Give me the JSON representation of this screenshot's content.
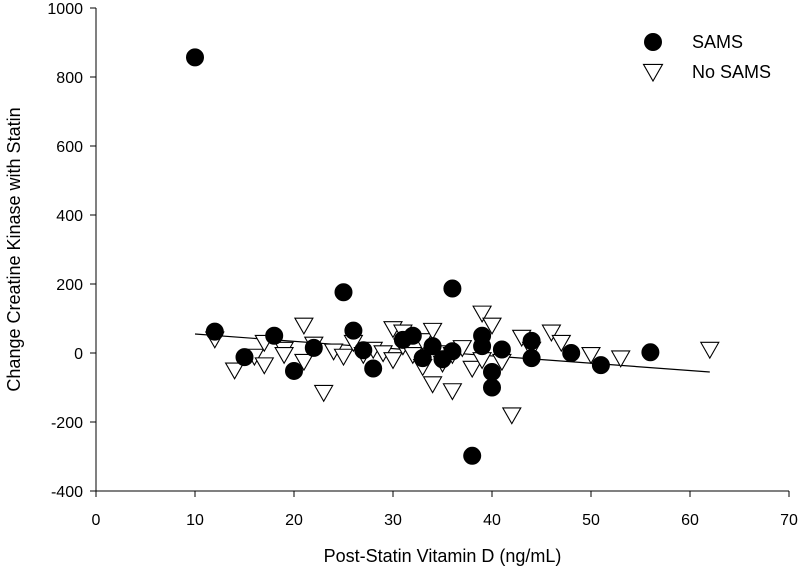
{
  "chart_data": {
    "type": "scatter",
    "title": "",
    "xlabel": "Post-Statin Vitamin D (ng/mL)",
    "ylabel": "Change Creatine Kinase with Statin",
    "xlim": [
      0,
      70
    ],
    "ylim": [
      -400,
      1000
    ],
    "xticks": [
      "0",
      "10",
      "20",
      "30",
      "40",
      "50",
      "60",
      "70"
    ],
    "yticks": [
      "-400",
      "-200",
      "0",
      "200",
      "400",
      "600",
      "800",
      "1000"
    ],
    "grid": false,
    "legend_position": "top-right",
    "series": [
      {
        "name": "SAMS",
        "marker": "filled-circle",
        "color": "#000000",
        "points": [
          [
            10,
            857
          ],
          [
            12,
            62
          ],
          [
            15,
            -12
          ],
          [
            18,
            50
          ],
          [
            20,
            -52
          ],
          [
            22,
            15
          ],
          [
            25,
            176
          ],
          [
            26,
            65
          ],
          [
            27,
            8
          ],
          [
            28,
            -45
          ],
          [
            31,
            38
          ],
          [
            32,
            50
          ],
          [
            33,
            -15
          ],
          [
            34,
            20
          ],
          [
            35,
            -18
          ],
          [
            36,
            187
          ],
          [
            36,
            5
          ],
          [
            38,
            -298
          ],
          [
            39,
            50
          ],
          [
            39,
            20
          ],
          [
            40,
            -55
          ],
          [
            40,
            -100
          ],
          [
            41,
            10
          ],
          [
            44,
            35
          ],
          [
            44,
            -15
          ],
          [
            48,
            0
          ],
          [
            51,
            -35
          ],
          [
            56,
            2
          ]
        ]
      },
      {
        "name": "No SAMS",
        "marker": "open-triangle-down",
        "color": "#000000",
        "points": [
          [
            12,
            40
          ],
          [
            14,
            -50
          ],
          [
            16,
            -10
          ],
          [
            17,
            30
          ],
          [
            17,
            -35
          ],
          [
            19,
            10
          ],
          [
            19,
            -5
          ],
          [
            21,
            80
          ],
          [
            21,
            -25
          ],
          [
            22,
            25
          ],
          [
            23,
            -115
          ],
          [
            24,
            5
          ],
          [
            25,
            -10
          ],
          [
            26,
            30
          ],
          [
            27,
            -5
          ],
          [
            28,
            10
          ],
          [
            29,
            0
          ],
          [
            30,
            70
          ],
          [
            30,
            -20
          ],
          [
            31,
            60
          ],
          [
            31,
            20
          ],
          [
            32,
            -5
          ],
          [
            33,
            35
          ],
          [
            33,
            -40
          ],
          [
            34,
            65
          ],
          [
            34,
            -90
          ],
          [
            35,
            0
          ],
          [
            35,
            -30
          ],
          [
            36,
            -5
          ],
          [
            36,
            -110
          ],
          [
            37,
            15
          ],
          [
            38,
            -45
          ],
          [
            39,
            115
          ],
          [
            39,
            -20
          ],
          [
            40,
            80
          ],
          [
            41,
            -25
          ],
          [
            42,
            -180
          ],
          [
            43,
            45
          ],
          [
            44,
            10
          ],
          [
            46,
            60
          ],
          [
            47,
            30
          ],
          [
            50,
            -5
          ],
          [
            53,
            -15
          ],
          [
            62,
            10
          ]
        ]
      }
    ],
    "trendline": {
      "x": [
        10,
        62
      ],
      "y": [
        55,
        -55
      ]
    }
  }
}
